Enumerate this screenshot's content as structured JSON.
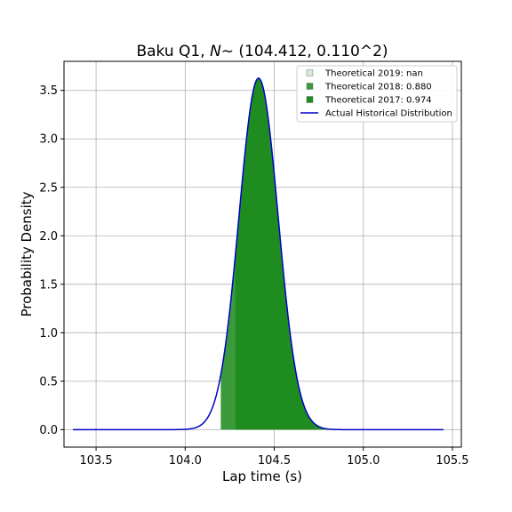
{
  "chart_data": {
    "type": "area",
    "title_prefix": "Baku Q1, ",
    "title_math": "N",
    "title_suffix": "∼ (104.412, 0.110^2)",
    "xlabel": "Lap time (s)",
    "ylabel": "Probability Density",
    "xlim": [
      103.32,
      105.55
    ],
    "ylim": [
      -0.18,
      3.8
    ],
    "xticks": [
      103.5,
      104.0,
      104.5,
      105.0,
      105.5
    ],
    "xtick_labels": [
      "103.5",
      "104.0",
      "104.5",
      "105.0",
      "105.5"
    ],
    "yticks": [
      0.0,
      0.5,
      1.0,
      1.5,
      2.0,
      2.5,
      3.0,
      3.5
    ],
    "ytick_labels": [
      "0.0",
      "0.5",
      "1.0",
      "1.5",
      "2.0",
      "2.5",
      "3.0",
      "3.5"
    ],
    "grid": true,
    "legend_position": "upper-right",
    "distribution": {
      "mean": 104.412,
      "std": 0.11,
      "x_start": 103.37,
      "x_end": 105.45
    },
    "series": [
      {
        "name": "Theoretical 2019: nan",
        "kind": "shaded",
        "color": "#d3ecd3",
        "x_from": null,
        "x_to": null
      },
      {
        "name": "Theoretical 2018: 0.880",
        "kind": "shaded",
        "color": "#3a9a3a",
        "x_from": 104.2,
        "x_to": 104.28
      },
      {
        "name": "Theoretical 2017: 0.974",
        "kind": "shaded",
        "color": "#1f8c1f",
        "x_from": 104.28,
        "x_to": 104.84
      },
      {
        "name": "Actual Historical Distribution",
        "kind": "line",
        "color": "#0000cc"
      }
    ]
  }
}
